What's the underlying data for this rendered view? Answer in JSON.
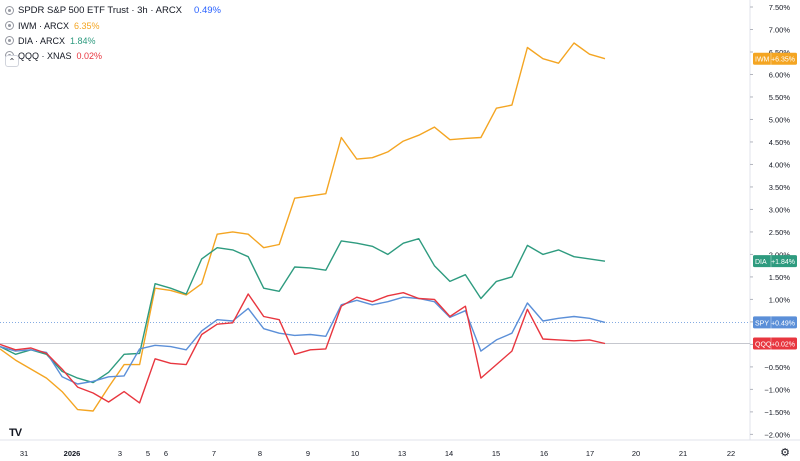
{
  "legend": {
    "main": {
      "title": "SPDR S&P 500 ETF Trust · 3h · ARCX",
      "change": "0.49%",
      "color": "#2962ff"
    },
    "comparisons": [
      {
        "label": "IWM · ARCX",
        "change": "6.35%",
        "color": "#f4a522"
      },
      {
        "label": "DIA · ARCX",
        "change": "1.84%",
        "color": "#2e9b7f"
      },
      {
        "label": "QQQ · XNAS",
        "change": "0.02%",
        "color": "#e8363f"
      }
    ]
  },
  "collapse_icon": "chevron-up-icon",
  "logo_text": "TV",
  "settings_icon": "gear-icon",
  "chart_data": {
    "type": "line",
    "x_ticks": [
      "31",
      "2026",
      "3",
      "5",
      "6",
      "7",
      "8",
      "9",
      "10",
      "13",
      "14",
      "15",
      "16",
      "17",
      "20",
      "21",
      "22"
    ],
    "y_ticks": [
      "7.50%",
      "7.00%",
      "6.50%",
      "6.00%",
      "5.50%",
      "5.00%",
      "4.50%",
      "4.00%",
      "3.50%",
      "3.00%",
      "2.50%",
      "2.00%",
      "1.50%",
      "1.00%",
      "0.50%",
      "0.00%",
      "−0.50%",
      "−1.00%",
      "−1.50%",
      "−2.00%"
    ],
    "ylim": [
      -2.0,
      7.5
    ],
    "grid": false,
    "series": [
      {
        "name": "IWM",
        "label": "IWM",
        "badge": "+6.35%",
        "color": "#f4a522",
        "values": [
          -0.1,
          -0.35,
          -0.55,
          -0.75,
          -1.05,
          -1.45,
          -1.48,
          -0.95,
          -0.45,
          -0.45,
          1.25,
          1.2,
          1.1,
          1.35,
          2.45,
          2.5,
          2.45,
          2.15,
          2.22,
          3.25,
          3.3,
          3.35,
          4.6,
          4.12,
          4.15,
          4.28,
          4.52,
          4.65,
          4.83,
          4.55,
          4.58,
          4.6,
          5.25,
          5.32,
          6.6,
          6.35,
          6.25,
          6.7,
          6.45,
          6.35
        ]
      },
      {
        "name": "DIA",
        "label": "DIA",
        "badge": "+1.84%",
        "color": "#2e9b7f",
        "values": [
          -0.05,
          -0.22,
          -0.12,
          -0.22,
          -0.6,
          -0.75,
          -0.85,
          -0.62,
          -0.22,
          -0.2,
          1.35,
          1.25,
          1.12,
          1.9,
          2.15,
          2.1,
          1.95,
          1.25,
          1.18,
          1.72,
          1.7,
          1.65,
          2.3,
          2.25,
          2.18,
          2.0,
          2.25,
          2.35,
          1.75,
          1.4,
          1.55,
          1.02,
          1.4,
          1.5,
          2.2,
          2.0,
          2.1,
          1.95,
          1.9,
          1.85
        ]
      },
      {
        "name": "SPY",
        "label": "SPY",
        "badge": "+0.49%",
        "color": "#5b8fd8",
        "values": [
          -0.05,
          -0.15,
          -0.12,
          -0.18,
          -0.72,
          -0.88,
          -0.82,
          -0.72,
          -0.7,
          -0.1,
          -0.02,
          -0.05,
          -0.12,
          0.3,
          0.55,
          0.52,
          0.8,
          0.35,
          0.25,
          0.2,
          0.22,
          0.18,
          0.88,
          0.98,
          0.88,
          0.95,
          1.05,
          1.02,
          0.95,
          0.6,
          0.75,
          -0.15,
          0.1,
          0.25,
          0.92,
          0.52,
          0.58,
          0.62,
          0.58,
          0.49
        ]
      },
      {
        "name": "QQQ",
        "label": "QQQ",
        "badge": "+0.02%",
        "color": "#e8363f",
        "values": [
          0.0,
          -0.12,
          -0.08,
          -0.2,
          -0.55,
          -0.95,
          -1.08,
          -1.28,
          -1.05,
          -1.3,
          -0.32,
          -0.42,
          -0.45,
          0.22,
          0.45,
          0.48,
          1.12,
          0.62,
          0.55,
          -0.22,
          -0.12,
          -0.1,
          0.85,
          1.05,
          0.95,
          1.08,
          1.15,
          1.02,
          1.0,
          0.62,
          0.85,
          -0.75,
          -0.45,
          -0.15,
          0.78,
          0.12,
          0.1,
          0.08,
          0.1,
          0.02
        ]
      }
    ]
  }
}
